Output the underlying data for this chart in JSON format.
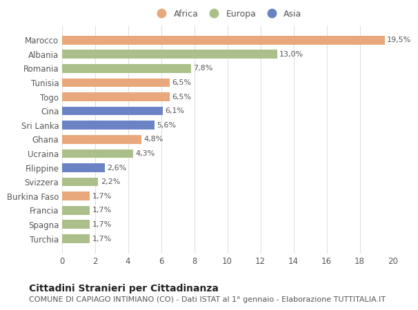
{
  "categories": [
    "Turchia",
    "Spagna",
    "Francia",
    "Burkina Faso",
    "Svizzera",
    "Filippine",
    "Ucraina",
    "Ghana",
    "Sri Lanka",
    "Cina",
    "Togo",
    "Tunisia",
    "Romania",
    "Albania",
    "Marocco"
  ],
  "values": [
    1.7,
    1.7,
    1.7,
    1.7,
    2.2,
    2.6,
    4.3,
    4.8,
    5.6,
    6.1,
    6.5,
    6.5,
    7.8,
    13.0,
    19.5
  ],
  "bar_colors": [
    "#aabf8a",
    "#aabf8a",
    "#aabf8a",
    "#e8a87c",
    "#aabf8a",
    "#6b83c4",
    "#aabf8a",
    "#e8a87c",
    "#6b83c4",
    "#6b83c4",
    "#e8a87c",
    "#e8a87c",
    "#aabf8a",
    "#aabf8a",
    "#e8a87c"
  ],
  "labels": [
    "1,7%",
    "1,7%",
    "1,7%",
    "1,7%",
    "2,2%",
    "2,6%",
    "4,3%",
    "4,8%",
    "5,6%",
    "6,1%",
    "6,5%",
    "6,5%",
    "7,8%",
    "13,0%",
    "19,5%"
  ],
  "legend_labels": [
    "Africa",
    "Europa",
    "Asia"
  ],
  "legend_colors": [
    "#e8a87c",
    "#aabf8a",
    "#6b83c4"
  ],
  "title": "Cittadini Stranieri per Cittadinanza",
  "subtitle": "COMUNE DI CAPIAGO INTIMIANO (CO) - Dati ISTAT al 1° gennaio - Elaborazione TUTTITALIA.IT",
  "xlim": [
    0,
    20
  ],
  "xticks": [
    0,
    2,
    4,
    6,
    8,
    10,
    12,
    14,
    16,
    18,
    20
  ],
  "background_color": "#ffffff",
  "grid_color": "#e0e0e0",
  "bar_height": 0.62,
  "title_fontsize": 10,
  "subtitle_fontsize": 8,
  "label_fontsize": 8,
  "tick_fontsize": 8.5,
  "legend_fontsize": 9
}
